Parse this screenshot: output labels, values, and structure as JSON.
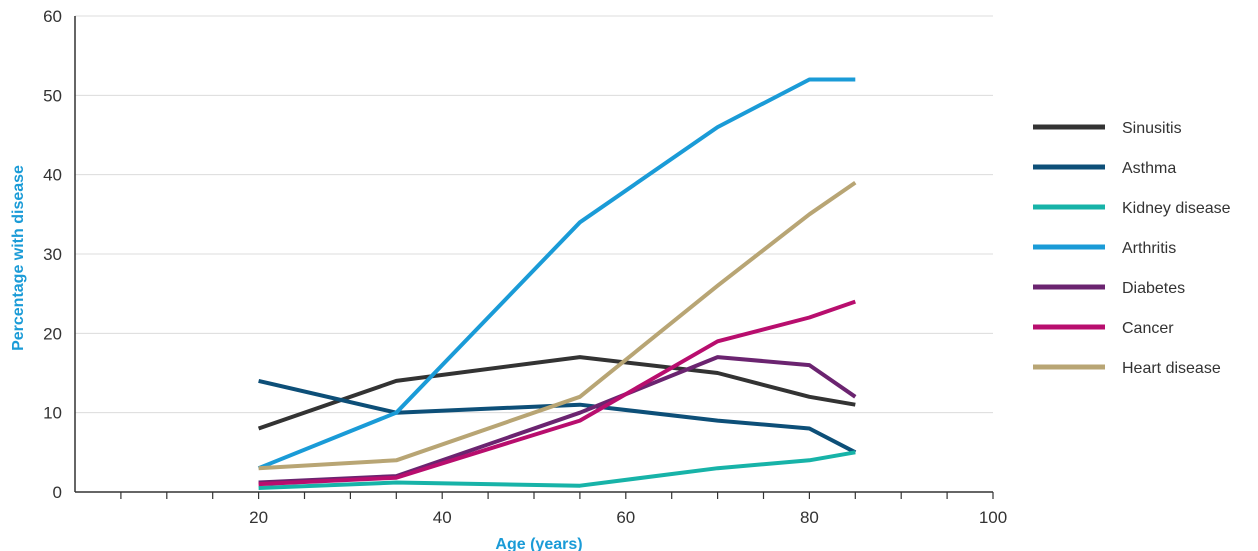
{
  "chart_data": {
    "type": "line",
    "xlabel": "Age (years)",
    "ylabel": "Percentage with disease",
    "xlim": [
      0,
      100
    ],
    "ylim": [
      0,
      60
    ],
    "x_ticks": [
      20,
      40,
      60,
      80,
      100
    ],
    "y_ticks": [
      0,
      10,
      20,
      30,
      40,
      50,
      60
    ],
    "x_minor_step": 5,
    "grid": "horizontal",
    "legend_position": "right",
    "x": [
      20,
      35,
      55,
      70,
      80,
      85
    ],
    "series": [
      {
        "name": "Sinusitis",
        "color": "#333333",
        "values": [
          8,
          14,
          17,
          15,
          12,
          11
        ]
      },
      {
        "name": "Asthma",
        "color": "#0d4f78",
        "values": [
          14,
          10,
          11,
          9,
          8,
          5
        ]
      },
      {
        "name": "Kidney disease",
        "color": "#17b3a8",
        "values": [
          0.5,
          1.2,
          0.8,
          3,
          4,
          5
        ]
      },
      {
        "name": "Arthritis",
        "color": "#1a9bd7",
        "values": [
          3,
          10,
          34,
          46,
          52,
          52
        ]
      },
      {
        "name": "Diabetes",
        "color": "#6b2470",
        "values": [
          1.2,
          2,
          10,
          17,
          16,
          12
        ]
      },
      {
        "name": "Cancer",
        "color": "#b80e6e",
        "values": [
          1,
          1.8,
          9,
          19,
          22,
          24
        ]
      },
      {
        "name": "Heart disease",
        "color": "#b8a574",
        "values": [
          3,
          4,
          12,
          26,
          35,
          39
        ]
      }
    ]
  }
}
